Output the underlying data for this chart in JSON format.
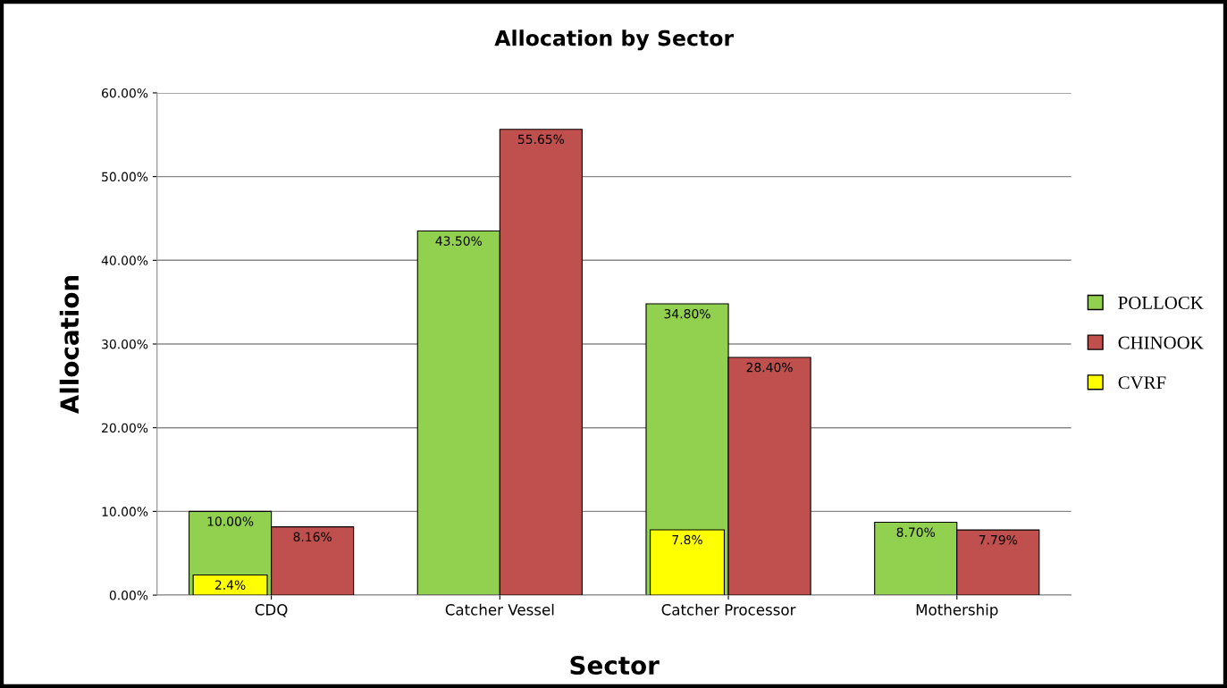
{
  "chart_data": {
    "type": "bar",
    "title": "Allocation by Sector",
    "xlabel": "Sector",
    "ylabel": "Allocation",
    "categories": [
      "CDQ",
      "Catcher Vessel",
      "Catcher Processor",
      "Mothership"
    ],
    "series": [
      {
        "name": "POLLOCK",
        "color": "#92d050",
        "values": [
          10.0,
          43.5,
          34.8,
          8.7
        ],
        "value_labels": [
          "10.00%",
          "43.50%",
          "34.80%",
          "8.70%"
        ]
      },
      {
        "name": "CHINOOK",
        "color": "#c0504d",
        "values": [
          8.16,
          55.65,
          28.4,
          7.79
        ],
        "value_labels": [
          "8.16%",
          "55.65%",
          "28.40%",
          "7.79%"
        ]
      },
      {
        "name": "CVRF",
        "color": "#ffff00",
        "values": [
          2.4,
          null,
          7.8,
          null
        ],
        "value_labels": [
          "2.4%",
          null,
          "7.8%",
          null
        ]
      }
    ],
    "ylim": [
      0,
      60
    ],
    "yticks": [
      {
        "value": 0,
        "label": "0.00%"
      },
      {
        "value": 10,
        "label": "10.00%"
      },
      {
        "value": 20,
        "label": "20.00%"
      },
      {
        "value": 30,
        "label": "30.00%"
      },
      {
        "value": 40,
        "label": "40.00%"
      },
      {
        "value": 50,
        "label": "50.00%"
      },
      {
        "value": 60,
        "label": "60.00%"
      }
    ],
    "grid": "y",
    "legend": "right"
  }
}
